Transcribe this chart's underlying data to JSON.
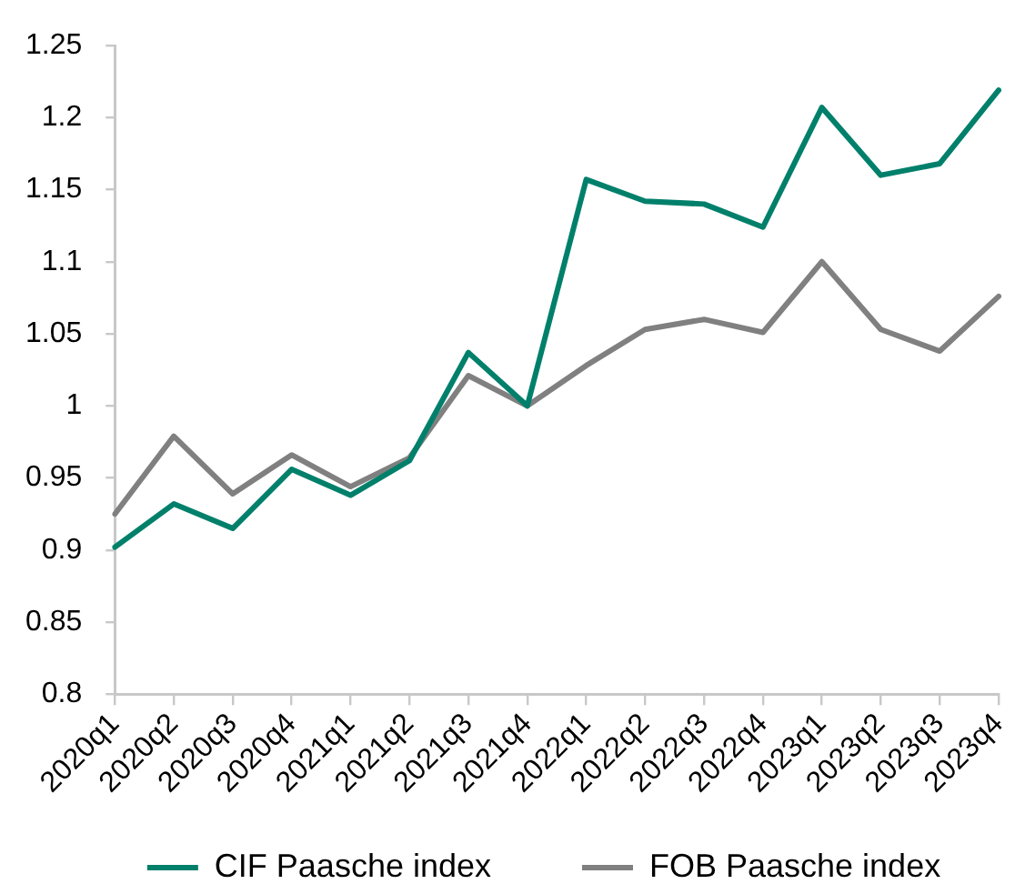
{
  "chart_data": {
    "type": "line",
    "categories": [
      "2020q1",
      "2020q2",
      "2020q3",
      "2020q4",
      "2021q1",
      "2021q2",
      "2021q3",
      "2021q4",
      "2022q1",
      "2022q2",
      "2022q3",
      "2022q4",
      "2023q1",
      "2023q2",
      "2023q3",
      "2023q4"
    ],
    "series": [
      {
        "name": "CIF Paasche index",
        "color": "#00806b",
        "values": [
          0.902,
          0.932,
          0.915,
          0.956,
          0.938,
          0.962,
          1.037,
          1.0,
          1.157,
          1.142,
          1.14,
          1.124,
          1.207,
          1.16,
          1.168,
          1.219
        ]
      },
      {
        "name": "FOB Paasche index",
        "color": "#808080",
        "values": [
          0.925,
          0.979,
          0.939,
          0.966,
          0.944,
          0.964,
          1.021,
          1.0,
          1.028,
          1.053,
          1.06,
          1.051,
          1.1,
          1.053,
          1.038,
          1.076
        ]
      }
    ],
    "ylim": [
      0.8,
      1.25
    ],
    "yticks": [
      0.8,
      0.85,
      0.9,
      0.95,
      1,
      1.05,
      1.1,
      1.15,
      1.2,
      1.25
    ],
    "legend": "bottom"
  }
}
